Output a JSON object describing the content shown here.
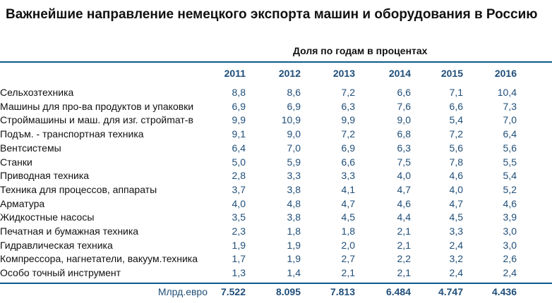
{
  "title": "Важнейшие направление немецкого экспорта машин и оборудования в Россию",
  "subtitle": "Доля по годам в процентах",
  "years": [
    "2011",
    "2012",
    "2013",
    "2014",
    "2015",
    "2016"
  ],
  "rows": [
    {
      "label": "Сельхозтехника",
      "values": [
        "8,8",
        "8,6",
        "7,2",
        "6,6",
        "7,1",
        "10,4"
      ]
    },
    {
      "label": "Машины для про-ва продуктов и упаковки",
      "values": [
        "6,9",
        "6,9",
        "6,3",
        "7,6",
        "6,6",
        "7,3"
      ]
    },
    {
      "label": "Строймашины и маш. для изг. стройmат-в",
      "values": [
        "9,9",
        "10,9",
        "9,9",
        "9,0",
        "5,4",
        "7,0"
      ]
    },
    {
      "label": "Подъм. - транспортная техника",
      "values": [
        "9,1",
        "9,0",
        "7,2",
        "6,8",
        "7,2",
        "6,4"
      ]
    },
    {
      "label": "Вентсистемы",
      "values": [
        "6,4",
        "7,0",
        "6,9",
        "6,3",
        "5,6",
        "5,6"
      ]
    },
    {
      "label": "Станки",
      "values": [
        "5,0",
        "5,9",
        "6,6",
        "7,5",
        "7,8",
        "5,5"
      ]
    },
    {
      "label": "Приводная техника",
      "values": [
        "2,8",
        "3,3",
        "3,3",
        "4,0",
        "4,6",
        "5,4"
      ]
    },
    {
      "label": "Техника для процессов, аппараты",
      "values": [
        "3,7",
        "3,8",
        "4,1",
        "4,7",
        "4,0",
        "5,2"
      ]
    },
    {
      "label": "Арматура",
      "values": [
        "4,0",
        "4,8",
        "4,7",
        "4,6",
        "4,7",
        "4,6"
      ]
    },
    {
      "label": "Жидкостные насосы",
      "values": [
        "3,5",
        "3,8",
        "4,5",
        "4,4",
        "4,5",
        "3,9"
      ]
    },
    {
      "label": "Печатная и бумажная техника",
      "values": [
        "2,3",
        "1,8",
        "1,8",
        "2,1",
        "3,3",
        "3,0"
      ]
    },
    {
      "label": "Гидравлическая техника",
      "values": [
        "1,9",
        "1,9",
        "2,0",
        "2,1",
        "2,4",
        "3,0"
      ]
    },
    {
      "label": "Компрессора, нагнетатели, вакуум.техника",
      "values": [
        "1,7",
        "1,9",
        "2,7",
        "2,2",
        "3,2",
        "2,6"
      ]
    },
    {
      "label": "Особо точный инструмент",
      "values": [
        "1,3",
        "1,4",
        "2,1",
        "2,1",
        "2,4",
        "2,4"
      ]
    }
  ],
  "totals": {
    "label": "Млрд.евро",
    "values": [
      "7.522",
      "8.095",
      "7.813",
      "6.484",
      "4.747",
      "4.436"
    ]
  },
  "colors": {
    "accent": "#1f4e79",
    "rule": "#0d5a8c"
  }
}
